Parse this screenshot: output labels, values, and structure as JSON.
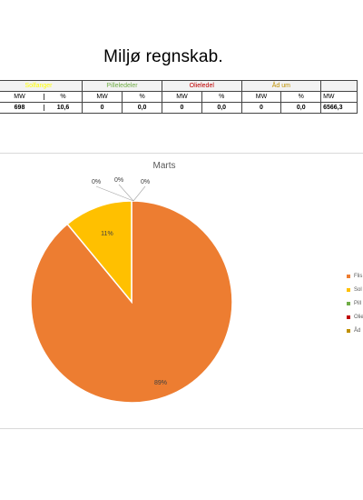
{
  "page_title": "Miljø regnskab.",
  "table": {
    "groups": [
      {
        "name": "Solfanger",
        "color": "#ffff00"
      },
      {
        "name": "Pilleledeler",
        "color": "#70ad47"
      },
      {
        "name": "Olieledel",
        "color": "#c00000"
      },
      {
        "name": "Åd um",
        "color": "#bf9000"
      }
    ],
    "headers": [
      "MW",
      "%",
      "MW",
      "%",
      "MW",
      "%",
      "MW",
      "%",
      "MW"
    ],
    "values": [
      "698",
      "10,6",
      "0",
      "0,0",
      "0",
      "0,0",
      "0",
      "0,0",
      "6566,3"
    ]
  },
  "chart_data": {
    "type": "pie",
    "title": "Marts",
    "slices": [
      {
        "label": "Flis",
        "value": 89,
        "display": "89%",
        "color": "#ed7d31"
      },
      {
        "label": "Sol",
        "value": 11,
        "display": "11%",
        "color": "#ffc000"
      },
      {
        "label": "Pill",
        "value": 0,
        "display": "0%",
        "color": "#70ad47"
      },
      {
        "label": "Olie",
        "value": 0,
        "display": "0%",
        "color": "#c00000"
      },
      {
        "label": "Åd",
        "value": 0,
        "display": "0%",
        "color": "#bf9000"
      }
    ],
    "legend_position": "right"
  }
}
